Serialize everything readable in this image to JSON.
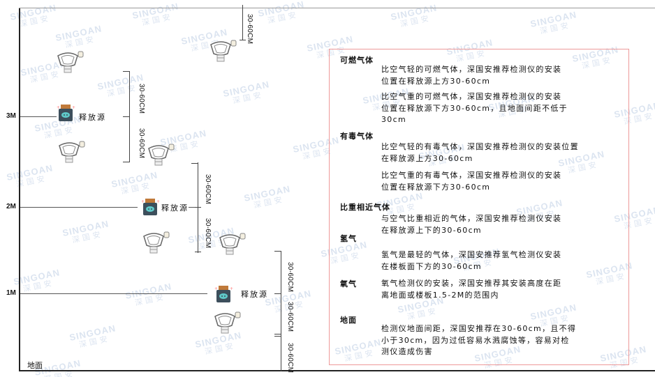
{
  "levels": [
    "3M",
    "2M",
    "1M"
  ],
  "ground_label": "地面",
  "source_label": "释放源",
  "dimension_label": "30-60CM",
  "watermark": {
    "brand": "SINGOAN",
    "cn": "深国安"
  },
  "colors": {
    "box_border": "#ee9999",
    "source_body": "#3d4f5c",
    "source_cap": "#c07a3a",
    "source_face": "#5fc9c9"
  },
  "panel": {
    "sections": [
      {
        "title": "可燃气体",
        "paras": [
          [
            "比空气轻的可燃气体，深国安推荐检测仪的安装",
            "位置在释放源上方30-60cm"
          ],
          [
            "比空气重的可燃气体，深国安推荐检测仪的安装",
            "位置在释放源下方30-60cm，且地面间距不低于",
            "30cm"
          ]
        ]
      },
      {
        "title": "有毒气体",
        "paras": [
          [
            "比空气轻的有毒气体，深国安推荐检测仪的安装位置",
            "在释放源上方30-60cm"
          ],
          [
            "比空气重的有毒气体，深国安推荐检测仪的安装",
            "位置在释放源下方30-60cm"
          ]
        ]
      },
      {
        "title": "比重相近气体",
        "paras": [
          [
            "与空气比重相近的气体，深国安推荐检测仪安装",
            "在释放源上下的30-60cm"
          ]
        ]
      },
      {
        "title": "氢气",
        "paras": [
          [
            "氢气是最轻的气体，深国安推荐氢气检测仪安装",
            "在楼板面下方的30-60cm"
          ]
        ]
      },
      {
        "title": "氧气",
        "paras": [
          [
            "氧气检测仪的安装，深国安推荐其安装高度在距",
            "离地面或楼板1.5-2M的范围内"
          ]
        ]
      },
      {
        "title": "地面",
        "paras": [
          [
            "检测仪地面间距，深国安推荐在30-60cm，且不得",
            "小于30cm，因为过低容易水溅腐蚀等，容易对检",
            "测仪造成伤害"
          ]
        ]
      }
    ]
  }
}
